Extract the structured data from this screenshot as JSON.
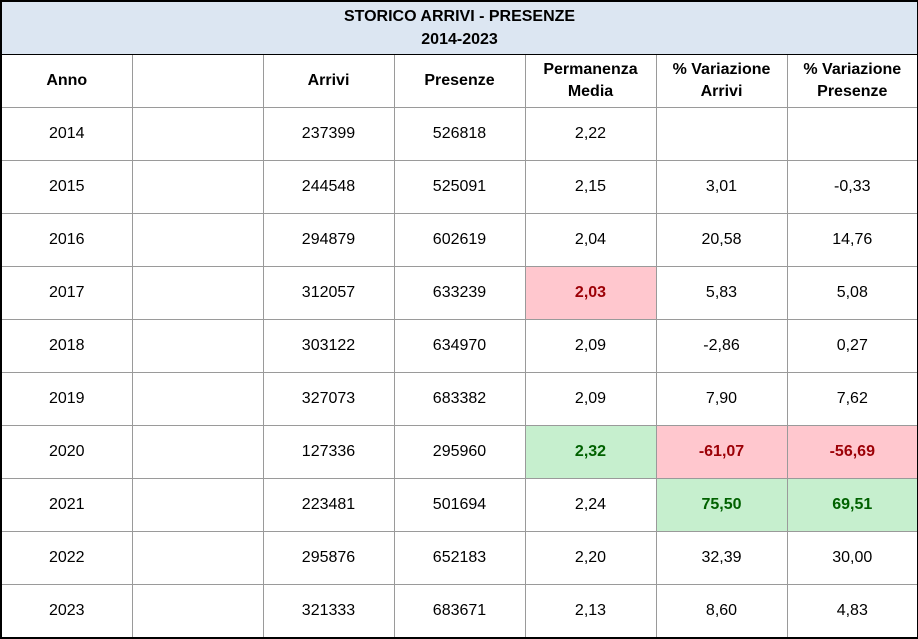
{
  "table": {
    "title_line1": "STORICO ARRIVI - PRESENZE",
    "title_line2": "2014-2023",
    "headers": {
      "anno": "Anno",
      "blank": "",
      "arrivi": "Arrivi",
      "presenze": "Presenze",
      "permanenza_1": "Permanenza",
      "permanenza_2": "Media",
      "var_arrivi_1": "% Variazione",
      "var_arrivi_2": "Arrivi",
      "var_presenze_1": "% Variazione",
      "var_presenze_2": "Presenze"
    },
    "rows": [
      {
        "anno": "2014",
        "arrivi": "237399",
        "presenze": "526818",
        "permanenza": "2,22",
        "var_arrivi": "",
        "var_presenze": ""
      },
      {
        "anno": "2015",
        "arrivi": "244548",
        "presenze": "525091",
        "permanenza": "2,15",
        "var_arrivi": "3,01",
        "var_presenze": "-0,33"
      },
      {
        "anno": "2016",
        "arrivi": "294879",
        "presenze": "602619",
        "permanenza": "2,04",
        "var_arrivi": "20,58",
        "var_presenze": "14,76"
      },
      {
        "anno": "2017",
        "arrivi": "312057",
        "presenze": "633239",
        "permanenza": "2,03",
        "var_arrivi": "5,83",
        "var_presenze": "5,08"
      },
      {
        "anno": "2018",
        "arrivi": "303122",
        "presenze": "634970",
        "permanenza": "2,09",
        "var_arrivi": "-2,86",
        "var_presenze": "0,27"
      },
      {
        "anno": "2019",
        "arrivi": "327073",
        "presenze": "683382",
        "permanenza": "2,09",
        "var_arrivi": "7,90",
        "var_presenze": "7,62"
      },
      {
        "anno": "2020",
        "arrivi": "127336",
        "presenze": "295960",
        "permanenza": "2,32",
        "var_arrivi": "-61,07",
        "var_presenze": "-56,69"
      },
      {
        "anno": "2021",
        "arrivi": "223481",
        "presenze": "501694",
        "permanenza": "2,24",
        "var_arrivi": "75,50",
        "var_presenze": "69,51"
      },
      {
        "anno": "2022",
        "arrivi": "295876",
        "presenze": "652183",
        "permanenza": "2,20",
        "var_arrivi": "32,39",
        "var_presenze": "30,00"
      },
      {
        "anno": "2023",
        "arrivi": "321333",
        "presenze": "683671",
        "permanenza": "2,13",
        "var_arrivi": "8,60",
        "var_presenze": "4,83"
      }
    ],
    "highlights": {
      "min_color_bg": "#ffc7ce",
      "min_color_text": "#9c0006",
      "max_color_bg": "#c6efce",
      "max_color_text": "#006100",
      "title_bg": "#dce6f2"
    }
  }
}
